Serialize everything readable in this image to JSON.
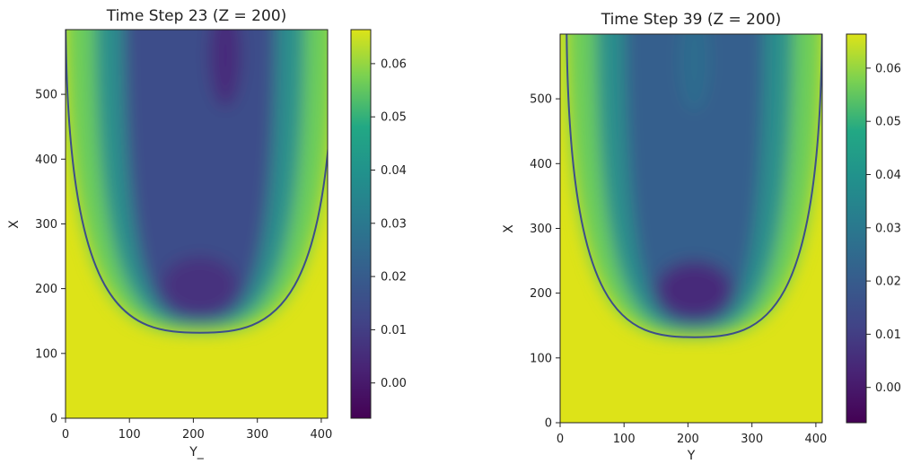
{
  "chart_data": [
    {
      "type": "heatmap",
      "title": "Time Step 23 (Z = 200)",
      "xlabel": "Y_",
      "ylabel": "X",
      "xlim": [
        0,
        410
      ],
      "ylim": [
        0,
        600
      ],
      "xticks": [
        0,
        100,
        200,
        300,
        400
      ],
      "yticks": [
        0,
        100,
        200,
        300,
        400,
        500
      ],
      "colorbar": {
        "min": -0.007,
        "max": 0.066,
        "ticks": [
          0.0,
          0.01,
          0.02,
          0.03,
          0.04,
          0.05,
          0.06
        ],
        "tick_labels": [
          "0.00",
          "0.01",
          "0.02",
          "0.03",
          "0.04",
          "0.05",
          "0.06"
        ],
        "colormap": "viridis"
      },
      "cavity": {
        "vertex": [
          210,
          130
        ],
        "rim_y": 600,
        "rim_half_width": 200
      },
      "features": {
        "core_min": 0.005,
        "peak_value": 0.066
      }
    },
    {
      "type": "heatmap",
      "title": "Time Step 39 (Z = 200)",
      "xlabel": "Y",
      "ylabel": "X",
      "xlim": [
        0,
        410
      ],
      "ylim": [
        0,
        600
      ],
      "xticks": [
        0,
        100,
        200,
        300,
        400
      ],
      "yticks": [
        0,
        100,
        200,
        300,
        400,
        500
      ],
      "colorbar": {
        "min": -0.007,
        "max": 0.066,
        "ticks": [
          0.0,
          0.01,
          0.02,
          0.03,
          0.04,
          0.05,
          0.06
        ],
        "tick_labels": [
          "0.00",
          "0.01",
          "0.02",
          "0.03",
          "0.04",
          "0.05",
          "0.06"
        ],
        "colormap": "viridis"
      },
      "cavity": {
        "vertex": [
          210,
          130
        ],
        "rim_y": 600,
        "rim_half_width": 190
      },
      "features": {
        "core_min": 0.003,
        "peak_value": 0.066
      }
    }
  ]
}
